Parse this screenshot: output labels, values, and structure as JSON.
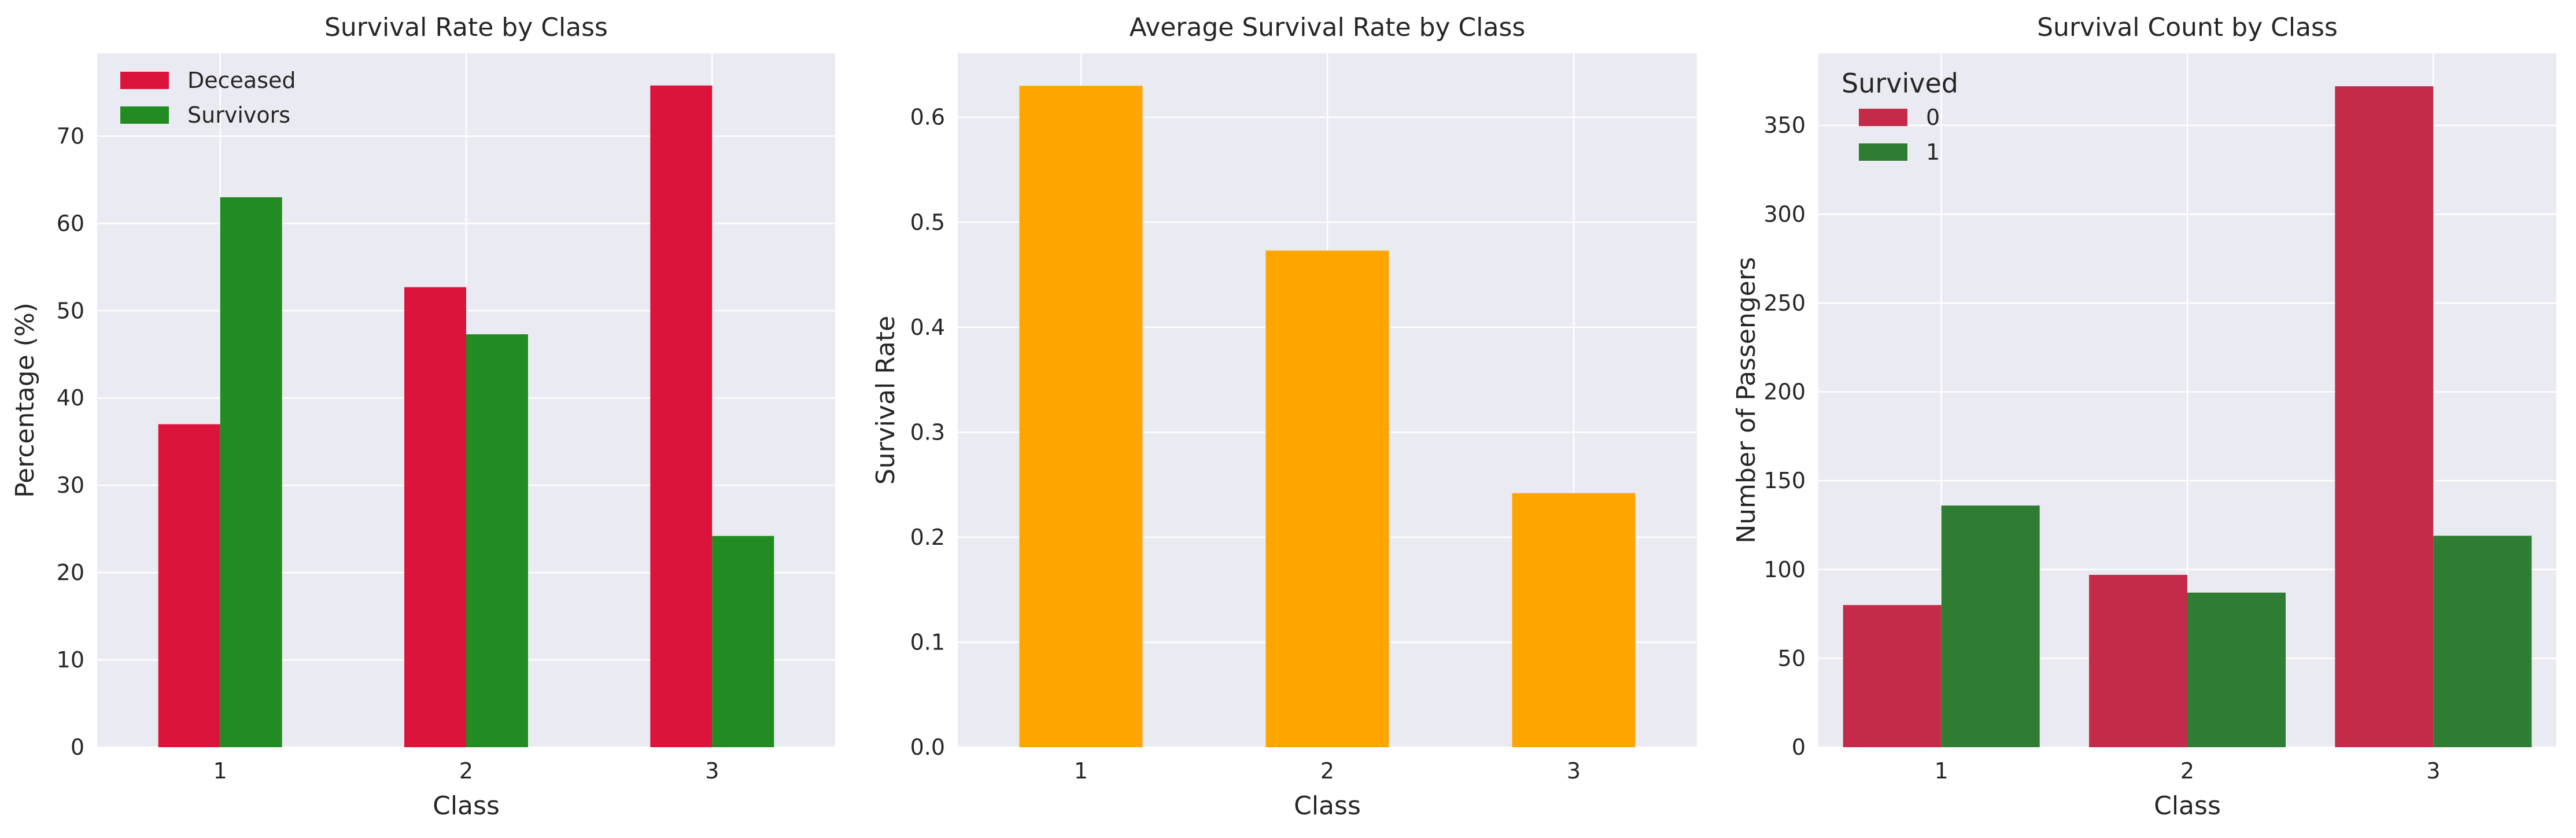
{
  "chart_data": [
    {
      "type": "bar",
      "title": "Survival Rate by Class",
      "xlabel": "Class",
      "ylabel": "Percentage (%)",
      "categories": [
        "1",
        "2",
        "3"
      ],
      "ylim": [
        0,
        79.5
      ],
      "yticks": [
        0,
        10,
        20,
        30,
        40,
        50,
        60,
        70
      ],
      "grid": true,
      "legend": "top-left",
      "legend_title": "",
      "series": [
        {
          "name": "Deceased",
          "color": "#DC143C",
          "values": [
            37.0,
            52.7,
            75.8
          ]
        },
        {
          "name": "Survivors",
          "color": "#228B22",
          "values": [
            63.0,
            47.3,
            24.2
          ]
        }
      ]
    },
    {
      "type": "bar",
      "title": "Average Survival Rate by Class",
      "xlabel": "Class",
      "ylabel": "Survival Rate",
      "categories": [
        "1",
        "2",
        "3"
      ],
      "ylim": [
        0,
        0.661
      ],
      "yticks": [
        "0.0",
        "0.1",
        "0.2",
        "0.3",
        "0.4",
        "0.5",
        "0.6"
      ],
      "grid": true,
      "series": [
        {
          "color": "#FFA500",
          "values": [
            0.63,
            0.473,
            0.242
          ]
        }
      ]
    },
    {
      "type": "bar",
      "title": "Survival Count by Class",
      "xlabel": "Class",
      "ylabel": "Number of Passengers",
      "categories": [
        "1",
        "2",
        "3"
      ],
      "ylim": [
        0,
        390.6
      ],
      "yticks": [
        0,
        50,
        100,
        150,
        200,
        250,
        300,
        350
      ],
      "grid": true,
      "legend": "top-left",
      "legend_title": "Survived",
      "series": [
        {
          "name": "0",
          "color": "#C42B48",
          "values": [
            80,
            97,
            372
          ]
        },
        {
          "name": "1",
          "color": "#2E7D32",
          "values": [
            136,
            87,
            119
          ]
        }
      ]
    }
  ]
}
